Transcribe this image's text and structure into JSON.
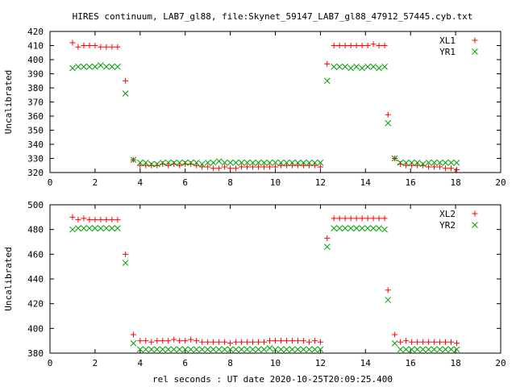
{
  "chart_data": {
    "title": "HIRES continuum, LAB7_gl88, file:Skynet_59147_LAB7_gl88_47912_57445.cyb.txt",
    "xlabel": "rel seconds : UT date 2020-10-25T20:09:25.400",
    "series_colors": {
      "red": "#ff0000",
      "green": "#00a000"
    },
    "panels": [
      {
        "type": "scatter",
        "ylabel": "Uncalibrated",
        "xlim": [
          0,
          20
        ],
        "ylim": [
          320,
          420
        ],
        "xticks": [
          0,
          2,
          4,
          6,
          8,
          10,
          12,
          14,
          16,
          18,
          20
        ],
        "yticks": [
          320,
          330,
          340,
          350,
          360,
          370,
          380,
          390,
          400,
          410,
          420
        ],
        "legend_position": "top-right",
        "series": [
          {
            "name": "XL1",
            "marker": "plus",
            "color": "#ff0000",
            "x": [
              1.0,
              1.25,
              1.5,
              1.75,
              2.0,
              2.25,
              2.5,
              2.75,
              3.0,
              3.35,
              3.7,
              4.0,
              4.25,
              4.5,
              4.75,
              5.0,
              5.25,
              5.5,
              5.75,
              6.0,
              6.25,
              6.5,
              6.75,
              7.0,
              7.25,
              7.5,
              7.75,
              8.0,
              8.25,
              8.5,
              8.75,
              9.0,
              9.25,
              9.5,
              9.75,
              10.0,
              10.25,
              10.5,
              10.75,
              11.0,
              11.25,
              11.5,
              11.75,
              12.0,
              12.3,
              12.6,
              12.85,
              13.1,
              13.35,
              13.6,
              13.85,
              14.1,
              14.35,
              14.6,
              14.85,
              15.0,
              15.3,
              15.55,
              15.8,
              16.05,
              16.3,
              16.55,
              16.8,
              17.05,
              17.3,
              17.55,
              17.8,
              18.05
            ],
            "y": [
              412,
              409,
              410,
              410,
              410,
              409,
              409,
              409,
              409,
              385,
              329,
              325,
              325,
              325,
              325,
              326,
              325,
              326,
              325,
              326,
              326,
              325,
              324,
              324,
              323,
              323,
              324,
              323,
              323,
              324,
              324,
              324,
              324,
              324,
              324,
              324,
              325,
              325,
              325,
              325,
              325,
              325,
              325,
              324,
              397,
              410,
              410,
              410,
              410,
              410,
              410,
              410,
              411,
              410,
              410,
              361,
              330,
              326,
              325,
              325,
              325,
              325,
              324,
              324,
              324,
              323,
              323,
              322
            ]
          },
          {
            "name": "YR1",
            "marker": "cross",
            "color": "#00a000",
            "x": [
              1.0,
              1.25,
              1.5,
              1.75,
              2.0,
              2.25,
              2.5,
              2.75,
              3.0,
              3.35,
              3.7,
              4.0,
              4.25,
              4.5,
              4.75,
              5.0,
              5.25,
              5.5,
              5.75,
              6.0,
              6.25,
              6.5,
              6.75,
              7.0,
              7.25,
              7.5,
              7.75,
              8.0,
              8.25,
              8.5,
              8.75,
              9.0,
              9.25,
              9.5,
              9.75,
              10.0,
              10.25,
              10.5,
              10.75,
              11.0,
              11.25,
              11.5,
              11.75,
              12.0,
              12.3,
              12.6,
              12.85,
              13.1,
              13.35,
              13.6,
              13.85,
              14.1,
              14.35,
              14.6,
              14.85,
              15.0,
              15.3,
              15.55,
              15.8,
              16.05,
              16.3,
              16.55,
              16.8,
              17.05,
              17.3,
              17.55,
              17.8,
              18.05
            ],
            "y": [
              394,
              395,
              395,
              395,
              395,
              396,
              395,
              395,
              395,
              376,
              329,
              327,
              327,
              326,
              326,
              327,
              327,
              327,
              327,
              327,
              327,
              327,
              326,
              327,
              327,
              328,
              327,
              327,
              327,
              327,
              327,
              327,
              327,
              327,
              327,
              327,
              327,
              327,
              327,
              327,
              327,
              327,
              327,
              327,
              385,
              395,
              395,
              395,
              394,
              395,
              394,
              395,
              395,
              394,
              395,
              355,
              330,
              327,
              327,
              327,
              327,
              326,
              327,
              327,
              327,
              327,
              327,
              327
            ]
          }
        ]
      },
      {
        "type": "scatter",
        "ylabel": "Uncalibrated",
        "xlim": [
          0,
          20
        ],
        "ylim": [
          380,
          500
        ],
        "xticks": [
          0,
          2,
          4,
          6,
          8,
          10,
          12,
          14,
          16,
          18,
          20
        ],
        "yticks": [
          380,
          400,
          420,
          440,
          460,
          480,
          500
        ],
        "legend_position": "top-right",
        "series": [
          {
            "name": "XL2",
            "marker": "plus",
            "color": "#ff0000",
            "x": [
              1.0,
              1.25,
              1.5,
              1.75,
              2.0,
              2.25,
              2.5,
              2.75,
              3.0,
              3.35,
              3.7,
              4.0,
              4.25,
              4.5,
              4.75,
              5.0,
              5.25,
              5.5,
              5.75,
              6.0,
              6.25,
              6.5,
              6.75,
              7.0,
              7.25,
              7.5,
              7.75,
              8.0,
              8.25,
              8.5,
              8.75,
              9.0,
              9.25,
              9.5,
              9.75,
              10.0,
              10.25,
              10.5,
              10.75,
              11.0,
              11.25,
              11.5,
              11.75,
              12.0,
              12.3,
              12.6,
              12.85,
              13.1,
              13.35,
              13.6,
              13.85,
              14.1,
              14.35,
              14.6,
              14.85,
              15.0,
              15.3,
              15.55,
              15.8,
              16.05,
              16.3,
              16.55,
              16.8,
              17.05,
              17.3,
              17.55,
              17.8,
              18.05
            ],
            "y": [
              490,
              488,
              489,
              488,
              488,
              488,
              488,
              488,
              488,
              460,
              395,
              390,
              390,
              389,
              390,
              390,
              390,
              391,
              390,
              390,
              391,
              390,
              389,
              389,
              389,
              389,
              389,
              388,
              389,
              389,
              389,
              389,
              389,
              389,
              390,
              390,
              390,
              390,
              390,
              390,
              390,
              389,
              390,
              389,
              473,
              489,
              489,
              489,
              489,
              489,
              489,
              489,
              489,
              489,
              489,
              431,
              395,
              389,
              390,
              389,
              389,
              389,
              389,
              389,
              389,
              389,
              389,
              388
            ]
          },
          {
            "name": "YR2",
            "marker": "cross",
            "color": "#00a000",
            "x": [
              1.0,
              1.25,
              1.5,
              1.75,
              2.0,
              2.25,
              2.5,
              2.75,
              3.0,
              3.35,
              3.7,
              4.0,
              4.25,
              4.5,
              4.75,
              5.0,
              5.25,
              5.5,
              5.75,
              6.0,
              6.25,
              6.5,
              6.75,
              7.0,
              7.25,
              7.5,
              7.75,
              8.0,
              8.25,
              8.5,
              8.75,
              9.0,
              9.25,
              9.5,
              9.75,
              10.0,
              10.25,
              10.5,
              10.75,
              11.0,
              11.25,
              11.5,
              11.75,
              12.0,
              12.3,
              12.6,
              12.85,
              13.1,
              13.35,
              13.6,
              13.85,
              14.1,
              14.35,
              14.6,
              14.85,
              15.0,
              15.3,
              15.55,
              15.8,
              16.05,
              16.3,
              16.55,
              16.8,
              17.05,
              17.3,
              17.55,
              17.8,
              18.05
            ],
            "y": [
              480,
              481,
              481,
              481,
              481,
              481,
              481,
              481,
              481,
              453,
              388,
              383,
              383,
              383,
              383,
              383,
              383,
              383,
              383,
              383,
              383,
              383,
              383,
              383,
              383,
              383,
              383,
              383,
              383,
              383,
              383,
              383,
              383,
              383,
              384,
              383,
              383,
              383,
              383,
              383,
              383,
              383,
              383,
              383,
              466,
              481,
              481,
              481,
              481,
              481,
              481,
              481,
              481,
              481,
              480,
              423,
              388,
              383,
              383,
              383,
              383,
              383,
              383,
              383,
              383,
              383,
              383,
              383
            ]
          }
        ]
      }
    ]
  }
}
